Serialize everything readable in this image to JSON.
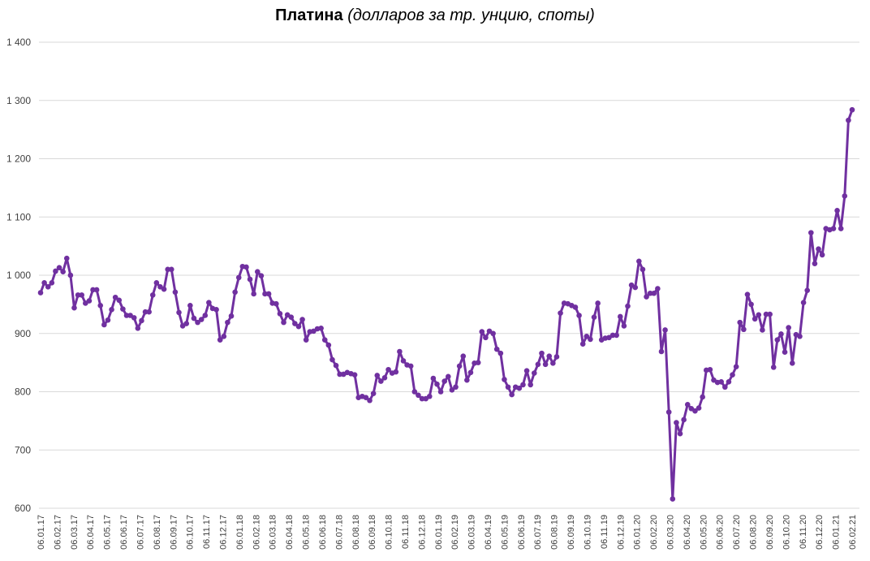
{
  "chart_data": {
    "type": "line",
    "title": "Платина",
    "subtitle": "(долларов за тр. унцию, споты)",
    "ylim": [
      600,
      1400
    ],
    "yticks": [
      "600",
      "700",
      "800",
      "900",
      "1 000",
      "1 100",
      "1 200",
      "1 300",
      "1 400"
    ],
    "grid": true,
    "legend": "none",
    "line_color": "#7030a0",
    "marker": "circle",
    "xtick_labels": [
      "06.01.17",
      "06.02.17",
      "06.03.17",
      "06.04.17",
      "06.05.17",
      "06.06.17",
      "06.07.17",
      "06.08.17",
      "06.09.17",
      "06.10.17",
      "06.11.17",
      "06.12.17",
      "06.01.18",
      "06.02.18",
      "06.03.18",
      "06.04.18",
      "06.05.18",
      "06.06.18",
      "06.07.18",
      "06.08.18",
      "06.09.18",
      "06.10.18",
      "06.11.18",
      "06.12.18",
      "06.01.19",
      "06.02.19",
      "06.03.19",
      "06.04.19",
      "06.05.19",
      "06.06.19",
      "06.07.19",
      "06.08.19",
      "06.09.19",
      "06.10.19",
      "06.11.19",
      "06.12.19",
      "06.01.20",
      "06.02.20",
      "06.03.20",
      "06.04.20",
      "06.05.20",
      "06.06.20",
      "06.07.20",
      "06.08.20",
      "06.09.20",
      "06.10.20",
      "06.11.20",
      "06.12.20",
      "06.01.21",
      "06.02.21"
    ],
    "series": [
      {
        "values": [
          970,
          987,
          980,
          987,
          1007,
          1013,
          1006,
          1029,
          1000,
          944,
          966,
          966,
          952,
          956,
          975,
          975,
          948,
          915,
          923,
          941,
          962,
          957,
          942,
          931,
          931,
          927,
          909,
          922,
          937,
          937,
          966,
          987,
          980,
          976,
          1010,
          1010,
          971,
          936,
          913,
          917,
          948,
          926,
          919,
          924,
          931,
          953,
          943,
          941,
          889,
          895,
          919,
          930,
          971,
          996,
          1015,
          1014,
          993,
          968,
          1006,
          999,
          968,
          968,
          952,
          951,
          934,
          919,
          932,
          928,
          917,
          912,
          924,
          889,
          903,
          904,
          908,
          909,
          889,
          880,
          855,
          845,
          830,
          830,
          833,
          831,
          829,
          790,
          792,
          790,
          785,
          797,
          828,
          818,
          824,
          838,
          832,
          834,
          869,
          853,
          846,
          844,
          800,
          794,
          788,
          788,
          792,
          823,
          813,
          800,
          818,
          826,
          803,
          808,
          844,
          861,
          820,
          833,
          849,
          850,
          903,
          893,
          904,
          900,
          873,
          866,
          821,
          808,
          795,
          808,
          806,
          812,
          836,
          812,
          832,
          847,
          866,
          847,
          861,
          849,
          860,
          935,
          952,
          951,
          948,
          945,
          931,
          882,
          895,
          890,
          928,
          952,
          889,
          892,
          893,
          897,
          897,
          929,
          913,
          947,
          983,
          979,
          1024,
          1010,
          963,
          969,
          969,
          977,
          869,
          906,
          765,
          616,
          747,
          728,
          752,
          778,
          771,
          767,
          772,
          791,
          837,
          838,
          820,
          816,
          817,
          808,
          817,
          829,
          843,
          919,
          907,
          967,
          950,
          925,
          932,
          906,
          933,
          933,
          842,
          889,
          899,
          868,
          910,
          849,
          898,
          895,
          953,
          974,
          1073,
          1020,
          1045,
          1035,
          1080,
          1078,
          1080,
          1111,
          1080,
          1136,
          1266,
          1284
        ]
      }
    ]
  }
}
